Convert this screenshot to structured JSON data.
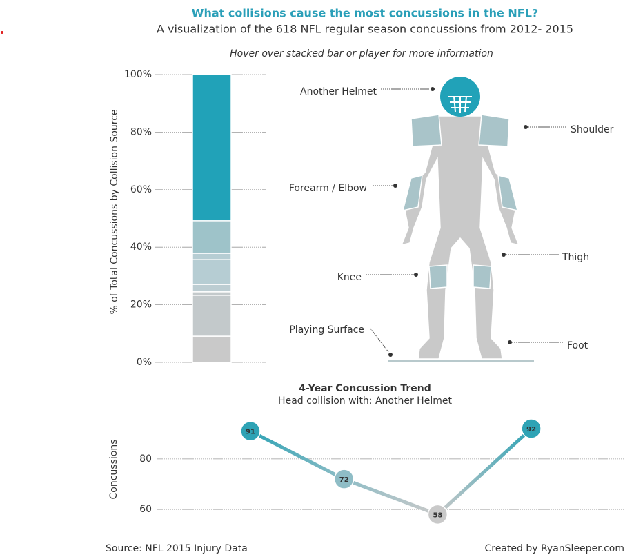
{
  "header": {
    "title": "What collisions cause the most concussions in the NFL?",
    "subtitle": "A visualization of the 618 NFL regular season concussions from 2012- 2015",
    "hint": "Hover over stacked bar or player for more information"
  },
  "chart_data": [
    {
      "type": "bar",
      "stacked": true,
      "y_label": "% of Total Concussions by Collision Source",
      "values": [
        9.1,
        14.2,
        1.2,
        2.6,
        8.6,
        2.2,
        11.3,
        50.8
      ],
      "colors": [
        "#c9c9c9",
        "#c3c9cb",
        "#c3c9cb",
        "#bccdd2",
        "#b6cdd3",
        "#b6cdd3",
        "#9ec3c9",
        "#21a2b8"
      ],
      "ylim": [
        0,
        100
      ],
      "yticks": [
        {
          "value": 0,
          "label": "0%"
        },
        {
          "value": 20,
          "label": "20%"
        },
        {
          "value": 40,
          "label": "40%"
        },
        {
          "value": 60,
          "label": "60%"
        },
        {
          "value": 80,
          "label": "80%"
        },
        {
          "value": 100,
          "label": "100%"
        }
      ],
      "grid": true
    },
    {
      "type": "line",
      "title": "4-Year Concussion Trend",
      "subtitle": "Head collision with: Another Helmet",
      "y_label": "Concussions",
      "categories": [
        null,
        null,
        null,
        null
      ],
      "values": [
        91,
        72,
        58,
        92
      ],
      "point_colors": [
        "#2ea3b5",
        "#8fbdc6",
        "#c9c9c9",
        "#2ea3b5"
      ],
      "ylim": [
        54,
        95
      ],
      "yticks": [
        60,
        80
      ],
      "grid": true
    }
  ],
  "player": {
    "labels": [
      "Another Helmet",
      "Shoulder",
      "Forearm / Elbow",
      "Thigh",
      "Knee",
      "Playing Surface",
      "Foot"
    ]
  },
  "footer": {
    "source": "Source: NFL 2015 Injury Data",
    "credit": "Created by RyanSleeper.com"
  }
}
